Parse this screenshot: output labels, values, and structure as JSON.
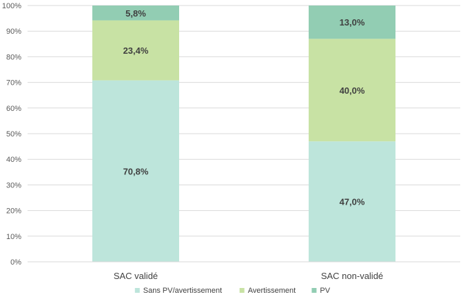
{
  "chart_data": {
    "type": "bar",
    "stacked": true,
    "categories": [
      "SAC validé",
      "SAC non-validé"
    ],
    "series": [
      {
        "name": "Sans PV/avertissement",
        "values": [
          70.8,
          47.0
        ],
        "labels": [
          "70,8%",
          "47,0%"
        ],
        "color": "#bde5db"
      },
      {
        "name": "Avertissement",
        "values": [
          23.4,
          40.0
        ],
        "labels": [
          "23,4%",
          "40,0%"
        ],
        "color": "#c8e2a4"
      },
      {
        "name": "PV",
        "values": [
          5.8,
          13.0
        ],
        "labels": [
          "5,8%",
          "13,0%"
        ],
        "color": "#92cdb3"
      }
    ],
    "y_ticks": [
      "0%",
      "10%",
      "20%",
      "30%",
      "40%",
      "50%",
      "60%",
      "70%",
      "80%",
      "90%",
      "100%"
    ],
    "ylim": [
      0,
      100
    ],
    "grid": true,
    "legend_position": "bottom"
  }
}
